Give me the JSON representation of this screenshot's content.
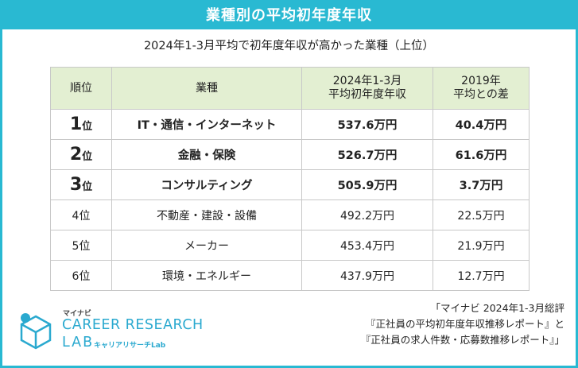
{
  "banner_title": "業種別の平均初年度年収",
  "subtitle": "2024年1-3月平均で初年度年収が高かった業種（上位）",
  "table": {
    "headers": {
      "rank": "順位",
      "industry": "業種",
      "salary_line1": "2024年1-3月",
      "salary_line2": "平均初年度年収",
      "diff_line1": "2019年",
      "diff_line2": "平均との差"
    },
    "rows": [
      {
        "rank_num": "1",
        "rank_suffix": "位",
        "industry": "IT・通信・インターネット",
        "salary": "537.6万円",
        "diff": "40.4万円"
      },
      {
        "rank_num": "2",
        "rank_suffix": "位",
        "industry": "金融・保険",
        "salary": "526.7万円",
        "diff": "61.6万円"
      },
      {
        "rank_num": "3",
        "rank_suffix": "位",
        "industry": "コンサルティング",
        "salary": "505.9万円",
        "diff": "3.7万円"
      },
      {
        "rank": "4位",
        "industry": "不動産・建設・設備",
        "salary": "492.2万円",
        "diff": "22.5万円"
      },
      {
        "rank": "5位",
        "industry": "メーカー",
        "salary": "453.4万円",
        "diff": "21.9万円"
      },
      {
        "rank": "6位",
        "industry": "環境・エネルギー",
        "salary": "437.9万円",
        "diff": "12.7万円"
      }
    ]
  },
  "source": {
    "line1": "「マイナビ 2024年1-3月総評",
    "line2": "『正社員の平均初年度年収推移レポート』と",
    "line3": "『正社員の求人件数・応募数推移レポート』」"
  },
  "logo": {
    "brand": "マイナビ",
    "line1": "CAREER RESEARCH",
    "line2": "LAB",
    "line3": "キャリアリサーチLab"
  },
  "colors": {
    "accent": "#29b9d2",
    "header_bg": "#e3efd2",
    "logo_blue": "#2aa9cf"
  }
}
